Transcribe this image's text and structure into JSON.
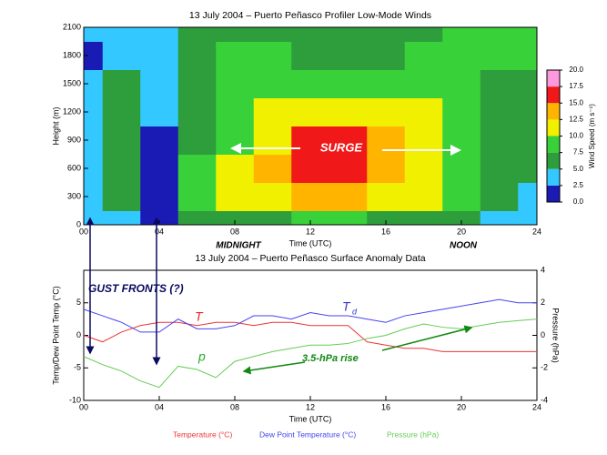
{
  "chart_data": [
    {
      "type": "heatmap",
      "title": "13 July 2004 – Puerto Peñasco Profiler Low-Mode Winds",
      "xlabel": "Time (UTC)",
      "ylabel": "Height (m)",
      "xlim": [
        0,
        24
      ],
      "ylim": [
        0,
        2100
      ],
      "xticks": [
        {
          "value": 0,
          "label": "00"
        },
        {
          "value": 4,
          "label": "04"
        },
        {
          "value": 8,
          "label": "08"
        },
        {
          "value": 12,
          "label": "12"
        },
        {
          "value": 16,
          "label": "16"
        },
        {
          "value": 20,
          "label": "20"
        },
        {
          "value": 24,
          "label": "24"
        }
      ],
      "yticks": [
        0,
        300,
        600,
        900,
        1200,
        1500,
        1800,
        2100
      ],
      "x": [
        0,
        2,
        4,
        6,
        8,
        10,
        12,
        14,
        16,
        18,
        20,
        22,
        24
      ],
      "y": [
        0,
        300,
        600,
        900,
        1200,
        1500,
        1800,
        2100
      ],
      "values": [
        [
          3,
          4,
          1,
          6,
          7,
          7,
          8,
          8,
          7,
          6,
          5,
          4,
          3
        ],
        [
          4,
          6,
          1,
          9,
          10,
          12,
          14,
          14,
          12,
          10,
          8,
          6,
          4
        ],
        [
          4,
          7,
          2,
          8,
          11,
          13,
          17,
          17,
          14,
          11,
          9,
          6,
          5
        ],
        [
          4,
          7,
          2,
          6,
          8,
          11,
          15,
          16,
          13,
          11,
          9,
          7,
          6
        ],
        [
          4,
          6,
          3,
          6,
          8,
          10,
          12,
          12,
          11,
          10,
          8,
          7,
          7
        ],
        [
          3,
          5,
          4,
          6,
          8,
          9,
          9,
          8,
          8,
          9,
          8,
          7,
          7
        ],
        [
          2,
          4,
          4,
          7,
          8,
          8,
          7,
          6,
          7,
          8,
          8,
          8,
          8
        ],
        [
          3,
          4,
          4,
          6,
          7,
          7,
          6,
          6,
          6,
          7,
          8,
          8,
          8
        ]
      ],
      "colorbar": {
        "label": "Wind Speed (m s⁻¹)",
        "lim": [
          0,
          20
        ],
        "ticks": [
          {
            "value": 0,
            "label": "0.0"
          },
          {
            "value": 2.5,
            "label": "2.5"
          },
          {
            "value": 5,
            "label": "5.0"
          },
          {
            "value": 7.5,
            "label": "7.5"
          },
          {
            "value": 10,
            "label": "10.0"
          },
          {
            "value": 12.5,
            "label": "12.5"
          },
          {
            "value": 15,
            "label": "15.0"
          },
          {
            "value": 17.5,
            "label": "17.5"
          },
          {
            "value": 20,
            "label": "20.0"
          }
        ],
        "colors": [
          "#1a1ab4",
          "#33c8ff",
          "#2e9e3c",
          "#39d13a",
          "#f0f000",
          "#ffb400",
          "#f01818",
          "#ff99dd"
        ]
      },
      "annotations": [
        "SURGE",
        "MIDNIGHT",
        "NOON"
      ]
    },
    {
      "type": "line",
      "title": "13 July 2004 – Puerto Peñasco Surface Anomaly Data",
      "xlabel": "Time (UTC)",
      "ylabel": "Temp/Dew Point Temp (°C)",
      "y2label": "Pressure (hPa)",
      "xlim": [
        0,
        24
      ],
      "ylim": [
        -10,
        10
      ],
      "y2lim": [
        -4,
        4
      ],
      "xticks": [
        {
          "value": 0,
          "label": "00"
        },
        {
          "value": 4,
          "label": "04"
        },
        {
          "value": 8,
          "label": "08"
        },
        {
          "value": 12,
          "label": "12"
        },
        {
          "value": 16,
          "label": "16"
        },
        {
          "value": 20,
          "label": "20"
        },
        {
          "value": 24,
          "label": "24"
        }
      ],
      "yticks": [
        -10,
        -5,
        0,
        5
      ],
      "y2ticks": [
        -4,
        -2,
        0,
        2,
        4
      ],
      "x": [
        0,
        1,
        2,
        3,
        4,
        5,
        6,
        7,
        8,
        9,
        10,
        11,
        12,
        13,
        14,
        15,
        16,
        17,
        18,
        19,
        20,
        21,
        22,
        23,
        24
      ],
      "series": [
        {
          "name": "Temperature (°C)",
          "color": "#ee3333",
          "values": [
            0,
            -1,
            0.5,
            1.5,
            2,
            2,
            1.5,
            2,
            2,
            1.5,
            2,
            2,
            1.5,
            1.5,
            1.5,
            -1,
            -1.5,
            -2,
            -2,
            -2.5,
            -2.5,
            -2.5,
            -2.5,
            -2.5,
            -2.5
          ]
        },
        {
          "name": "Dew Point Temperature (°C)",
          "color": "#4444ee",
          "values": [
            4,
            3,
            2,
            0.5,
            0.5,
            2.5,
            1,
            1,
            1.5,
            3,
            3,
            2.5,
            3.5,
            3,
            3,
            2.5,
            2,
            3,
            3.5,
            4,
            4.5,
            5,
            5.5,
            5,
            5
          ]
        },
        {
          "name": "Pressure (hPa)",
          "color": "#66cc55",
          "axis": "y2",
          "values": [
            -1.3,
            -1.8,
            -2.2,
            -2.8,
            -3.2,
            -1.9,
            -2.1,
            -2.6,
            -1.6,
            -1.3,
            -1,
            -0.8,
            -0.6,
            -0.6,
            -0.5,
            -0.2,
            0,
            0.4,
            0.7,
            0.5,
            0.4,
            0.6,
            0.8,
            0.9,
            1
          ]
        }
      ],
      "annotations": [
        "GUST FRONTS (?)",
        "T",
        "T",
        "d",
        "p",
        "3.5-hPa rise"
      ]
    }
  ]
}
